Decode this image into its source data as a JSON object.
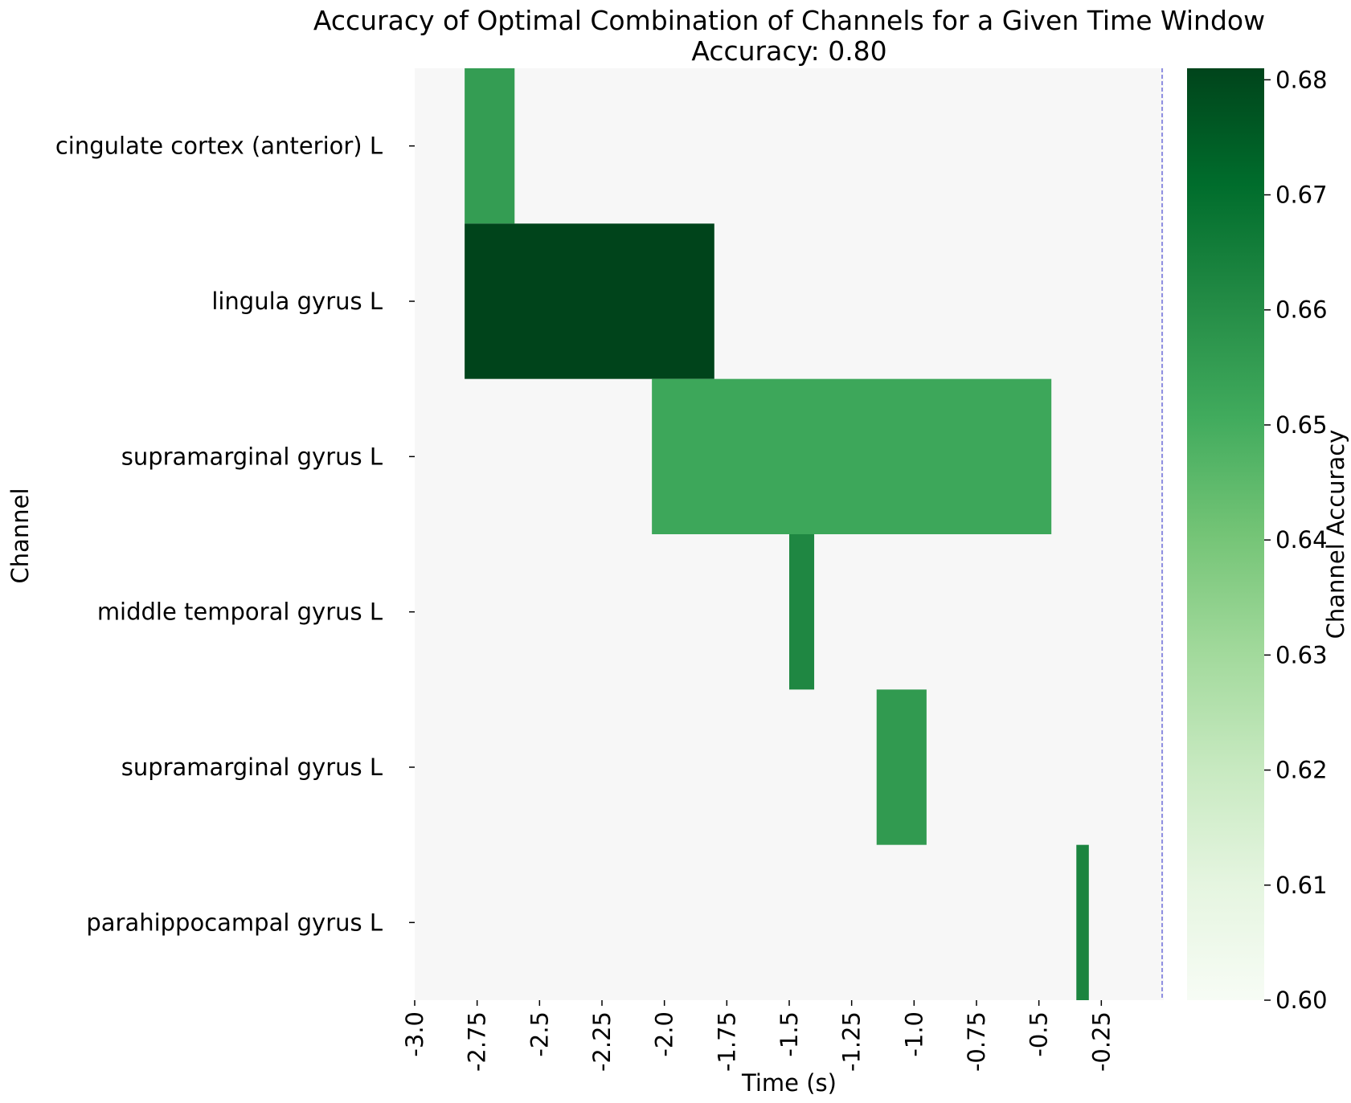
{
  "chart_data": {
    "type": "heatmap",
    "title": "Accuracy of Optimal Combination of Channels for a Given Time Window",
    "subtitle": "Accuracy: 0.80",
    "xlabel": "Time (s)",
    "ylabel": "Channel",
    "xlim": [
      -3.0,
      0.0
    ],
    "x_ticks": [
      -3.0,
      -2.75,
      -2.5,
      -2.25,
      -2.0,
      -1.75,
      -1.5,
      -1.25,
      -1.0,
      -0.75,
      -0.5,
      -0.25
    ],
    "x_tick_labels": [
      "-3.0",
      "-2.75",
      "-2.5",
      "-2.25",
      "-2.0",
      "-1.75",
      "-1.5",
      "-1.25",
      "-1.0",
      "-0.75",
      "-0.5",
      "-0.25"
    ],
    "channels": [
      "cingulate cortex (anterior) L",
      "lingula gyrus L",
      "supramarginal gyrus L",
      "middle temporal gyrus L",
      "supramarginal gyrus L",
      "parahippocampal gyrus L"
    ],
    "cells": [
      {
        "channel_index": 0,
        "t_start": -2.8,
        "t_end": -2.6,
        "accuracy": 0.655
      },
      {
        "channel_index": 1,
        "t_start": -2.8,
        "t_end": -1.8,
        "accuracy": 0.681
      },
      {
        "channel_index": 2,
        "t_start": -2.05,
        "t_end": -0.45,
        "accuracy": 0.652
      },
      {
        "channel_index": 3,
        "t_start": -1.5,
        "t_end": -1.4,
        "accuracy": 0.662
      },
      {
        "channel_index": 4,
        "t_start": -1.15,
        "t_end": -0.95,
        "accuracy": 0.656
      },
      {
        "channel_index": 5,
        "t_start": -0.35,
        "t_end": -0.3,
        "accuracy": 0.663
      }
    ],
    "background_color": "#f7f7f7",
    "vline": {
      "x": 0.0,
      "color": "#2a2acc",
      "style": "dashed"
    },
    "colorbar": {
      "label": "Channel Accuracy",
      "vmin": 0.6,
      "vmax": 0.681,
      "ticks": [
        0.6,
        0.61,
        0.62,
        0.63,
        0.64,
        0.65,
        0.66,
        0.67,
        0.68
      ],
      "tick_labels": [
        "0.60",
        "0.61",
        "0.62",
        "0.63",
        "0.64",
        "0.65",
        "0.66",
        "0.67",
        "0.68"
      ],
      "colors": [
        "#f7fcf5",
        "#e5f5e0",
        "#c7e9c0",
        "#a1d99b",
        "#74c476",
        "#41ab5d",
        "#238b45",
        "#006d2c",
        "#00441b"
      ]
    }
  }
}
